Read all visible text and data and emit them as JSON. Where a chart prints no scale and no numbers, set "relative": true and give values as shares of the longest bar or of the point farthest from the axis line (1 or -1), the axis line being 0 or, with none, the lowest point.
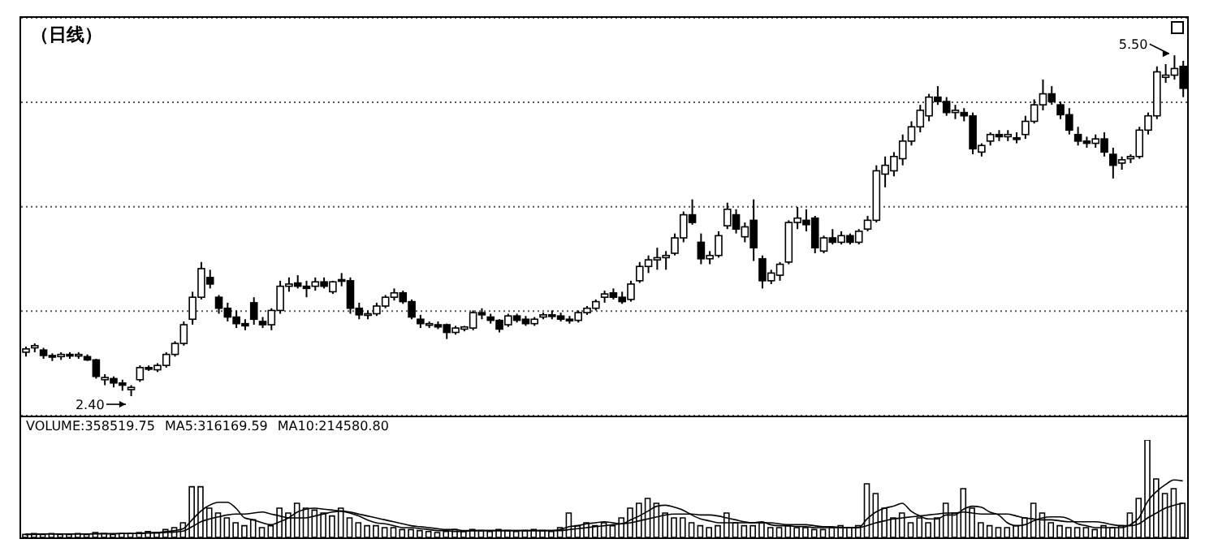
{
  "chart_data": [
    {
      "type": "candlestick",
      "title": "（日线）",
      "grid": "y",
      "categories": [
        null,
        null,
        null,
        null,
        null,
        null,
        null,
        null,
        null,
        null,
        null,
        null,
        null,
        null,
        null,
        null,
        null,
        null,
        null,
        null,
        null,
        null,
        null,
        null,
        null,
        null,
        null,
        null,
        null,
        null,
        null,
        null,
        null,
        null,
        null,
        null,
        null,
        null,
        null,
        null,
        null,
        null,
        null,
        null,
        null,
        null,
        null,
        null,
        null,
        null,
        null,
        null,
        null,
        null,
        null,
        null,
        null,
        null,
        null,
        null,
        null,
        null,
        null,
        null,
        null,
        null,
        null,
        null,
        null,
        null,
        null,
        null,
        null,
        null,
        null,
        null,
        null,
        null,
        null,
        null,
        null,
        null,
        null,
        null,
        null,
        null,
        null,
        null,
        null,
        null,
        null,
        null,
        null,
        null,
        null,
        null,
        null,
        null,
        null,
        null,
        null,
        null,
        null,
        null,
        null,
        null,
        null,
        null,
        null,
        null,
        null,
        null,
        null,
        null,
        null,
        null,
        null,
        null,
        null,
        null,
        null,
        null,
        null,
        null,
        null,
        null,
        null,
        null,
        null,
        null,
        null,
        null,
        null
      ],
      "ohlc": [
        [
          2.8,
          2.85,
          2.76,
          2.83
        ],
        [
          2.84,
          2.88,
          2.8,
          2.86
        ],
        [
          2.82,
          2.84,
          2.74,
          2.77
        ],
        [
          2.77,
          2.79,
          2.72,
          2.76
        ],
        [
          2.76,
          2.8,
          2.73,
          2.78
        ],
        [
          2.78,
          2.8,
          2.74,
          2.77
        ],
        [
          2.77,
          2.8,
          2.74,
          2.78
        ],
        [
          2.76,
          2.78,
          2.72,
          2.73
        ],
        [
          2.73,
          2.74,
          2.56,
          2.58
        ],
        [
          2.55,
          2.6,
          2.5,
          2.57
        ],
        [
          2.56,
          2.58,
          2.48,
          2.52
        ],
        [
          2.52,
          2.55,
          2.45,
          2.5
        ],
        [
          2.46,
          2.5,
          2.4,
          2.48
        ],
        [
          2.55,
          2.68,
          2.53,
          2.66
        ],
        [
          2.66,
          2.68,
          2.63,
          2.65
        ],
        [
          2.64,
          2.7,
          2.62,
          2.68
        ],
        [
          2.68,
          2.8,
          2.66,
          2.78
        ],
        [
          2.78,
          2.9,
          2.76,
          2.88
        ],
        [
          2.88,
          3.08,
          2.86,
          3.05
        ],
        [
          3.1,
          3.35,
          3.05,
          3.3
        ],
        [
          3.3,
          3.62,
          3.28,
          3.56
        ],
        [
          3.48,
          3.55,
          3.38,
          3.42
        ],
        [
          3.3,
          3.32,
          3.15,
          3.2
        ],
        [
          3.2,
          3.25,
          3.08,
          3.12
        ],
        [
          3.12,
          3.18,
          3.02,
          3.06
        ],
        [
          3.06,
          3.1,
          3.0,
          3.04
        ],
        [
          3.25,
          3.3,
          3.05,
          3.1
        ],
        [
          3.08,
          3.12,
          3.02,
          3.05
        ],
        [
          3.05,
          3.2,
          3.0,
          3.18
        ],
        [
          3.18,
          3.45,
          3.15,
          3.4
        ],
        [
          3.4,
          3.48,
          3.35,
          3.42
        ],
        [
          3.43,
          3.5,
          3.38,
          3.4
        ],
        [
          3.4,
          3.45,
          3.3,
          3.38
        ],
        [
          3.4,
          3.48,
          3.36,
          3.44
        ],
        [
          3.44,
          3.48,
          3.38,
          3.4
        ],
        [
          3.35,
          3.45,
          3.33,
          3.44
        ],
        [
          3.46,
          3.52,
          3.4,
          3.45
        ],
        [
          3.45,
          3.48,
          3.15,
          3.2
        ],
        [
          3.2,
          3.25,
          3.1,
          3.14
        ],
        [
          3.14,
          3.18,
          3.1,
          3.15
        ],
        [
          3.15,
          3.25,
          3.13,
          3.22
        ],
        [
          3.22,
          3.32,
          3.2,
          3.3
        ],
        [
          3.3,
          3.38,
          3.27,
          3.34
        ],
        [
          3.34,
          3.36,
          3.24,
          3.26
        ],
        [
          3.26,
          3.28,
          3.1,
          3.12
        ],
        [
          3.1,
          3.14,
          3.02,
          3.06
        ],
        [
          3.05,
          3.08,
          3.02,
          3.06
        ],
        [
          3.05,
          3.08,
          3.01,
          3.03
        ],
        [
          3.05,
          3.06,
          2.92,
          2.98
        ],
        [
          2.98,
          3.04,
          2.96,
          3.02
        ],
        [
          3.01,
          3.04,
          2.99,
          3.03
        ],
        [
          3.02,
          3.18,
          3.0,
          3.16
        ],
        [
          3.16,
          3.2,
          3.1,
          3.14
        ],
        [
          3.12,
          3.15,
          3.06,
          3.09
        ],
        [
          3.09,
          3.1,
          2.98,
          3.01
        ],
        [
          3.05,
          3.15,
          3.03,
          3.13
        ],
        [
          3.13,
          3.15,
          3.07,
          3.09
        ],
        [
          3.1,
          3.13,
          3.04,
          3.06
        ],
        [
          3.06,
          3.12,
          3.04,
          3.1
        ],
        [
          3.12,
          3.16,
          3.1,
          3.14
        ],
        [
          3.14,
          3.18,
          3.1,
          3.13
        ],
        [
          3.13,
          3.16,
          3.08,
          3.1
        ],
        [
          3.1,
          3.13,
          3.06,
          3.09
        ],
        [
          3.09,
          3.18,
          3.07,
          3.16
        ],
        [
          3.16,
          3.22,
          3.14,
          3.2
        ],
        [
          3.2,
          3.28,
          3.18,
          3.26
        ],
        [
          3.3,
          3.36,
          3.25,
          3.33
        ],
        [
          3.34,
          3.38,
          3.28,
          3.3
        ],
        [
          3.3,
          3.35,
          3.24,
          3.26
        ],
        [
          3.28,
          3.45,
          3.26,
          3.42
        ],
        [
          3.45,
          3.62,
          3.43,
          3.58
        ],
        [
          3.58,
          3.68,
          3.52,
          3.64
        ],
        [
          3.64,
          3.75,
          3.55,
          3.66
        ],
        [
          3.66,
          3.72,
          3.55,
          3.68
        ],
        [
          3.7,
          3.88,
          3.68,
          3.84
        ],
        [
          3.84,
          4.08,
          3.8,
          4.05
        ],
        [
          4.05,
          4.19,
          3.96,
          3.98
        ],
        [
          3.8,
          3.88,
          3.6,
          3.65
        ],
        [
          3.65,
          3.72,
          3.6,
          3.68
        ],
        [
          3.68,
          3.9,
          3.66,
          3.86
        ],
        [
          3.95,
          4.16,
          3.92,
          4.1
        ],
        [
          4.05,
          4.1,
          3.88,
          3.92
        ],
        [
          3.85,
          3.98,
          3.8,
          3.94
        ],
        [
          4.0,
          4.19,
          3.63,
          3.75
        ],
        [
          3.65,
          3.68,
          3.38,
          3.45
        ],
        [
          3.45,
          3.55,
          3.42,
          3.52
        ],
        [
          3.5,
          3.62,
          3.45,
          3.6
        ],
        [
          3.62,
          4.0,
          3.6,
          3.98
        ],
        [
          3.98,
          4.12,
          3.92,
          4.02
        ],
        [
          4.0,
          4.1,
          3.9,
          3.96
        ],
        [
          4.02,
          4.04,
          3.7,
          3.75
        ],
        [
          3.72,
          3.86,
          3.7,
          3.84
        ],
        [
          3.84,
          3.92,
          3.78,
          3.8
        ],
        [
          3.8,
          3.9,
          3.78,
          3.86
        ],
        [
          3.86,
          3.88,
          3.78,
          3.8
        ],
        [
          3.8,
          3.92,
          3.78,
          3.9
        ],
        [
          3.92,
          4.04,
          3.9,
          4.0
        ],
        [
          4.0,
          4.5,
          3.98,
          4.45
        ],
        [
          4.42,
          4.58,
          4.3,
          4.5
        ],
        [
          4.45,
          4.62,
          4.4,
          4.58
        ],
        [
          4.56,
          4.78,
          4.5,
          4.72
        ],
        [
          4.72,
          4.9,
          4.68,
          4.85
        ],
        [
          4.85,
          5.05,
          4.8,
          5.0
        ],
        [
          4.95,
          5.15,
          4.9,
          5.12
        ],
        [
          5.12,
          5.22,
          5.05,
          5.08
        ],
        [
          5.08,
          5.12,
          4.95,
          4.98
        ],
        [
          4.98,
          5.05,
          4.92,
          5.0
        ],
        [
          4.98,
          5.02,
          4.9,
          4.95
        ],
        [
          4.95,
          4.98,
          4.6,
          4.65
        ],
        [
          4.62,
          4.7,
          4.58,
          4.68
        ],
        [
          4.72,
          4.8,
          4.68,
          4.78
        ],
        [
          4.78,
          4.82,
          4.72,
          4.76
        ],
        [
          4.76,
          4.82,
          4.72,
          4.78
        ],
        [
          4.75,
          4.8,
          4.7,
          4.74
        ],
        [
          4.78,
          4.95,
          4.74,
          4.9
        ],
        [
          4.9,
          5.1,
          4.88,
          5.05
        ],
        [
          5.05,
          5.28,
          5.0,
          5.15
        ],
        [
          5.15,
          5.22,
          5.05,
          5.08
        ],
        [
          5.05,
          5.08,
          4.92,
          4.96
        ],
        [
          4.96,
          5.02,
          4.78,
          4.82
        ],
        [
          4.78,
          4.85,
          4.68,
          4.72
        ],
        [
          4.72,
          4.76,
          4.66,
          4.7
        ],
        [
          4.7,
          4.78,
          4.66,
          4.74
        ],
        [
          4.74,
          4.8,
          4.58,
          4.62
        ],
        [
          4.6,
          4.66,
          4.38,
          4.5
        ],
        [
          4.52,
          4.58,
          4.46,
          4.55
        ],
        [
          4.56,
          4.6,
          4.52,
          4.58
        ],
        [
          4.58,
          4.85,
          4.56,
          4.82
        ],
        [
          4.82,
          4.98,
          4.78,
          4.95
        ],
        [
          4.95,
          5.4,
          4.92,
          5.35
        ],
        [
          5.3,
          5.42,
          5.25,
          5.32
        ],
        [
          5.32,
          5.5,
          5.28,
          5.38
        ],
        [
          5.4,
          5.45,
          5.12,
          5.2
        ]
      ],
      "annotations": [
        "2.40",
        "5.50"
      ]
    },
    {
      "type": "bar",
      "relative": true,
      "categories": [
        null,
        null,
        null,
        null,
        null,
        null,
        null,
        null,
        null,
        null,
        null,
        null,
        null,
        null,
        null,
        null,
        null,
        null,
        null,
        null,
        null,
        null,
        null,
        null,
        null,
        null,
        null,
        null,
        null,
        null,
        null,
        null,
        null,
        null,
        null,
        null,
        null,
        null,
        null,
        null,
        null,
        null,
        null,
        null,
        null,
        null,
        null,
        null,
        null,
        null,
        null,
        null,
        null,
        null,
        null,
        null,
        null,
        null,
        null,
        null,
        null,
        null,
        null,
        null,
        null,
        null,
        null,
        null,
        null,
        null,
        null,
        null,
        null,
        null,
        null,
        null,
        null,
        null,
        null,
        null,
        null,
        null,
        null,
        null,
        null,
        null,
        null,
        null,
        null,
        null,
        null,
        null,
        null,
        null,
        null,
        null,
        null,
        null,
        null,
        null,
        null,
        null,
        null,
        null,
        null,
        null,
        null,
        null,
        null,
        null,
        null,
        null,
        null,
        null,
        null,
        null,
        null,
        null,
        null,
        null,
        null,
        null,
        null,
        null,
        null,
        null,
        null,
        null,
        null,
        null,
        null,
        null,
        null
      ],
      "series": [
        {
          "color": "#000000",
          "values": [
            0.03,
            0.04,
            0.03,
            0.04,
            0.03,
            0.03,
            0.04,
            0.03,
            0.05,
            0.04,
            0.03,
            0.04,
            0.04,
            0.05,
            0.06,
            0.05,
            0.08,
            0.1,
            0.15,
            0.52,
            0.52,
            0.3,
            0.25,
            0.2,
            0.15,
            0.12,
            0.18,
            0.1,
            0.12,
            0.3,
            0.25,
            0.35,
            0.3,
            0.28,
            0.25,
            0.22,
            0.3,
            0.2,
            0.15,
            0.12,
            0.12,
            0.1,
            0.1,
            0.08,
            0.08,
            0.07,
            0.06,
            0.05,
            0.06,
            0.08,
            0.06,
            0.08,
            0.07,
            0.06,
            0.08,
            0.07,
            0.06,
            0.07,
            0.08,
            0.07,
            0.06,
            0.1,
            0.25,
            0.12,
            0.15,
            0.12,
            0.15,
            0.12,
            0.2,
            0.3,
            0.35,
            0.4,
            0.35,
            0.25,
            0.2,
            0.2,
            0.15,
            0.12,
            0.1,
            0.12,
            0.25,
            0.15,
            0.12,
            0.12,
            0.15,
            0.1,
            0.1,
            0.12,
            0.1,
            0.1,
            0.08,
            0.08,
            0.1,
            0.12,
            0.1,
            0.12,
            0.55,
            0.45,
            0.3,
            0.2,
            0.25,
            0.15,
            0.2,
            0.15,
            0.2,
            0.35,
            0.25,
            0.5,
            0.3,
            0.15,
            0.12,
            0.1,
            0.1,
            0.12,
            0.2,
            0.35,
            0.25,
            0.15,
            0.12,
            0.1,
            0.1,
            0.1,
            0.08,
            0.12,
            0.1,
            0.12,
            0.25,
            0.4,
            1.0,
            0.6,
            0.45,
            0.5,
            0.35
          ]
        },
        {
          "type": "line",
          "color": "#000000",
          "values": [
            0.03,
            0.035,
            0.035,
            0.035,
            0.035,
            0.035,
            0.035,
            0.035,
            0.04,
            0.04,
            0.04,
            0.04,
            0.04,
            0.04,
            0.05,
            0.05,
            0.06,
            0.07,
            0.09,
            0.18,
            0.27,
            0.33,
            0.36,
            0.36,
            0.3,
            0.2,
            0.18,
            0.15,
            0.13,
            0.16,
            0.2,
            0.26,
            0.29,
            0.3,
            0.29,
            0.28,
            0.27,
            0.25,
            0.22,
            0.18,
            0.15,
            0.14,
            0.12,
            0.1,
            0.1,
            0.09,
            0.08,
            0.07,
            0.07,
            0.06,
            0.06,
            0.07,
            0.07,
            0.07,
            0.07,
            0.07,
            0.07,
            0.07,
            0.07,
            0.07,
            0.07,
            0.08,
            0.11,
            0.12,
            0.14,
            0.15,
            0.16,
            0.15,
            0.14,
            0.18,
            0.22,
            0.27,
            0.32,
            0.33,
            0.31,
            0.28,
            0.23,
            0.19,
            0.17,
            0.15,
            0.15,
            0.15,
            0.15,
            0.15,
            0.16,
            0.13,
            0.12,
            0.12,
            0.11,
            0.11,
            0.1,
            0.1,
            0.1,
            0.1,
            0.1,
            0.1,
            0.19,
            0.26,
            0.3,
            0.32,
            0.35,
            0.27,
            0.22,
            0.19,
            0.19,
            0.23,
            0.23,
            0.29,
            0.32,
            0.31,
            0.26,
            0.23,
            0.15,
            0.12,
            0.13,
            0.17,
            0.2,
            0.21,
            0.21,
            0.19,
            0.14,
            0.12,
            0.1,
            0.1,
            0.1,
            0.1,
            0.13,
            0.2,
            0.37,
            0.47,
            0.54,
            0.59,
            0.58
          ]
        },
        {
          "type": "line",
          "color": "#000000",
          "values": [
            0.03,
            0.03,
            0.035,
            0.035,
            0.035,
            0.035,
            0.035,
            0.035,
            0.035,
            0.035,
            0.035,
            0.04,
            0.04,
            0.04,
            0.045,
            0.045,
            0.05,
            0.055,
            0.065,
            0.11,
            0.16,
            0.19,
            0.21,
            0.23,
            0.24,
            0.24,
            0.25,
            0.26,
            0.24,
            0.22,
            0.2,
            0.2,
            0.2,
            0.22,
            0.24,
            0.26,
            0.27,
            0.26,
            0.24,
            0.22,
            0.2,
            0.18,
            0.16,
            0.14,
            0.12,
            0.11,
            0.1,
            0.09,
            0.08,
            0.08,
            0.07,
            0.07,
            0.07,
            0.07,
            0.07,
            0.07,
            0.07,
            0.07,
            0.07,
            0.07,
            0.07,
            0.07,
            0.08,
            0.09,
            0.1,
            0.11,
            0.12,
            0.13,
            0.14,
            0.15,
            0.17,
            0.19,
            0.21,
            0.23,
            0.24,
            0.24,
            0.24,
            0.23,
            0.23,
            0.22,
            0.2,
            0.18,
            0.16,
            0.15,
            0.15,
            0.15,
            0.14,
            0.13,
            0.13,
            0.13,
            0.12,
            0.11,
            0.11,
            0.1,
            0.1,
            0.1,
            0.12,
            0.15,
            0.17,
            0.19,
            0.2,
            0.21,
            0.22,
            0.23,
            0.24,
            0.25,
            0.25,
            0.26,
            0.25,
            0.24,
            0.24,
            0.24,
            0.24,
            0.22,
            0.2,
            0.19,
            0.18,
            0.18,
            0.17,
            0.16,
            0.16,
            0.16,
            0.16,
            0.15,
            0.13,
            0.12,
            0.12,
            0.14,
            0.2,
            0.25,
            0.3,
            0.33,
            0.35
          ]
        }
      ],
      "annotations": [
        "VOLUME:358519.75",
        "MA5:316169.59",
        "MA10:214580.80"
      ]
    }
  ]
}
